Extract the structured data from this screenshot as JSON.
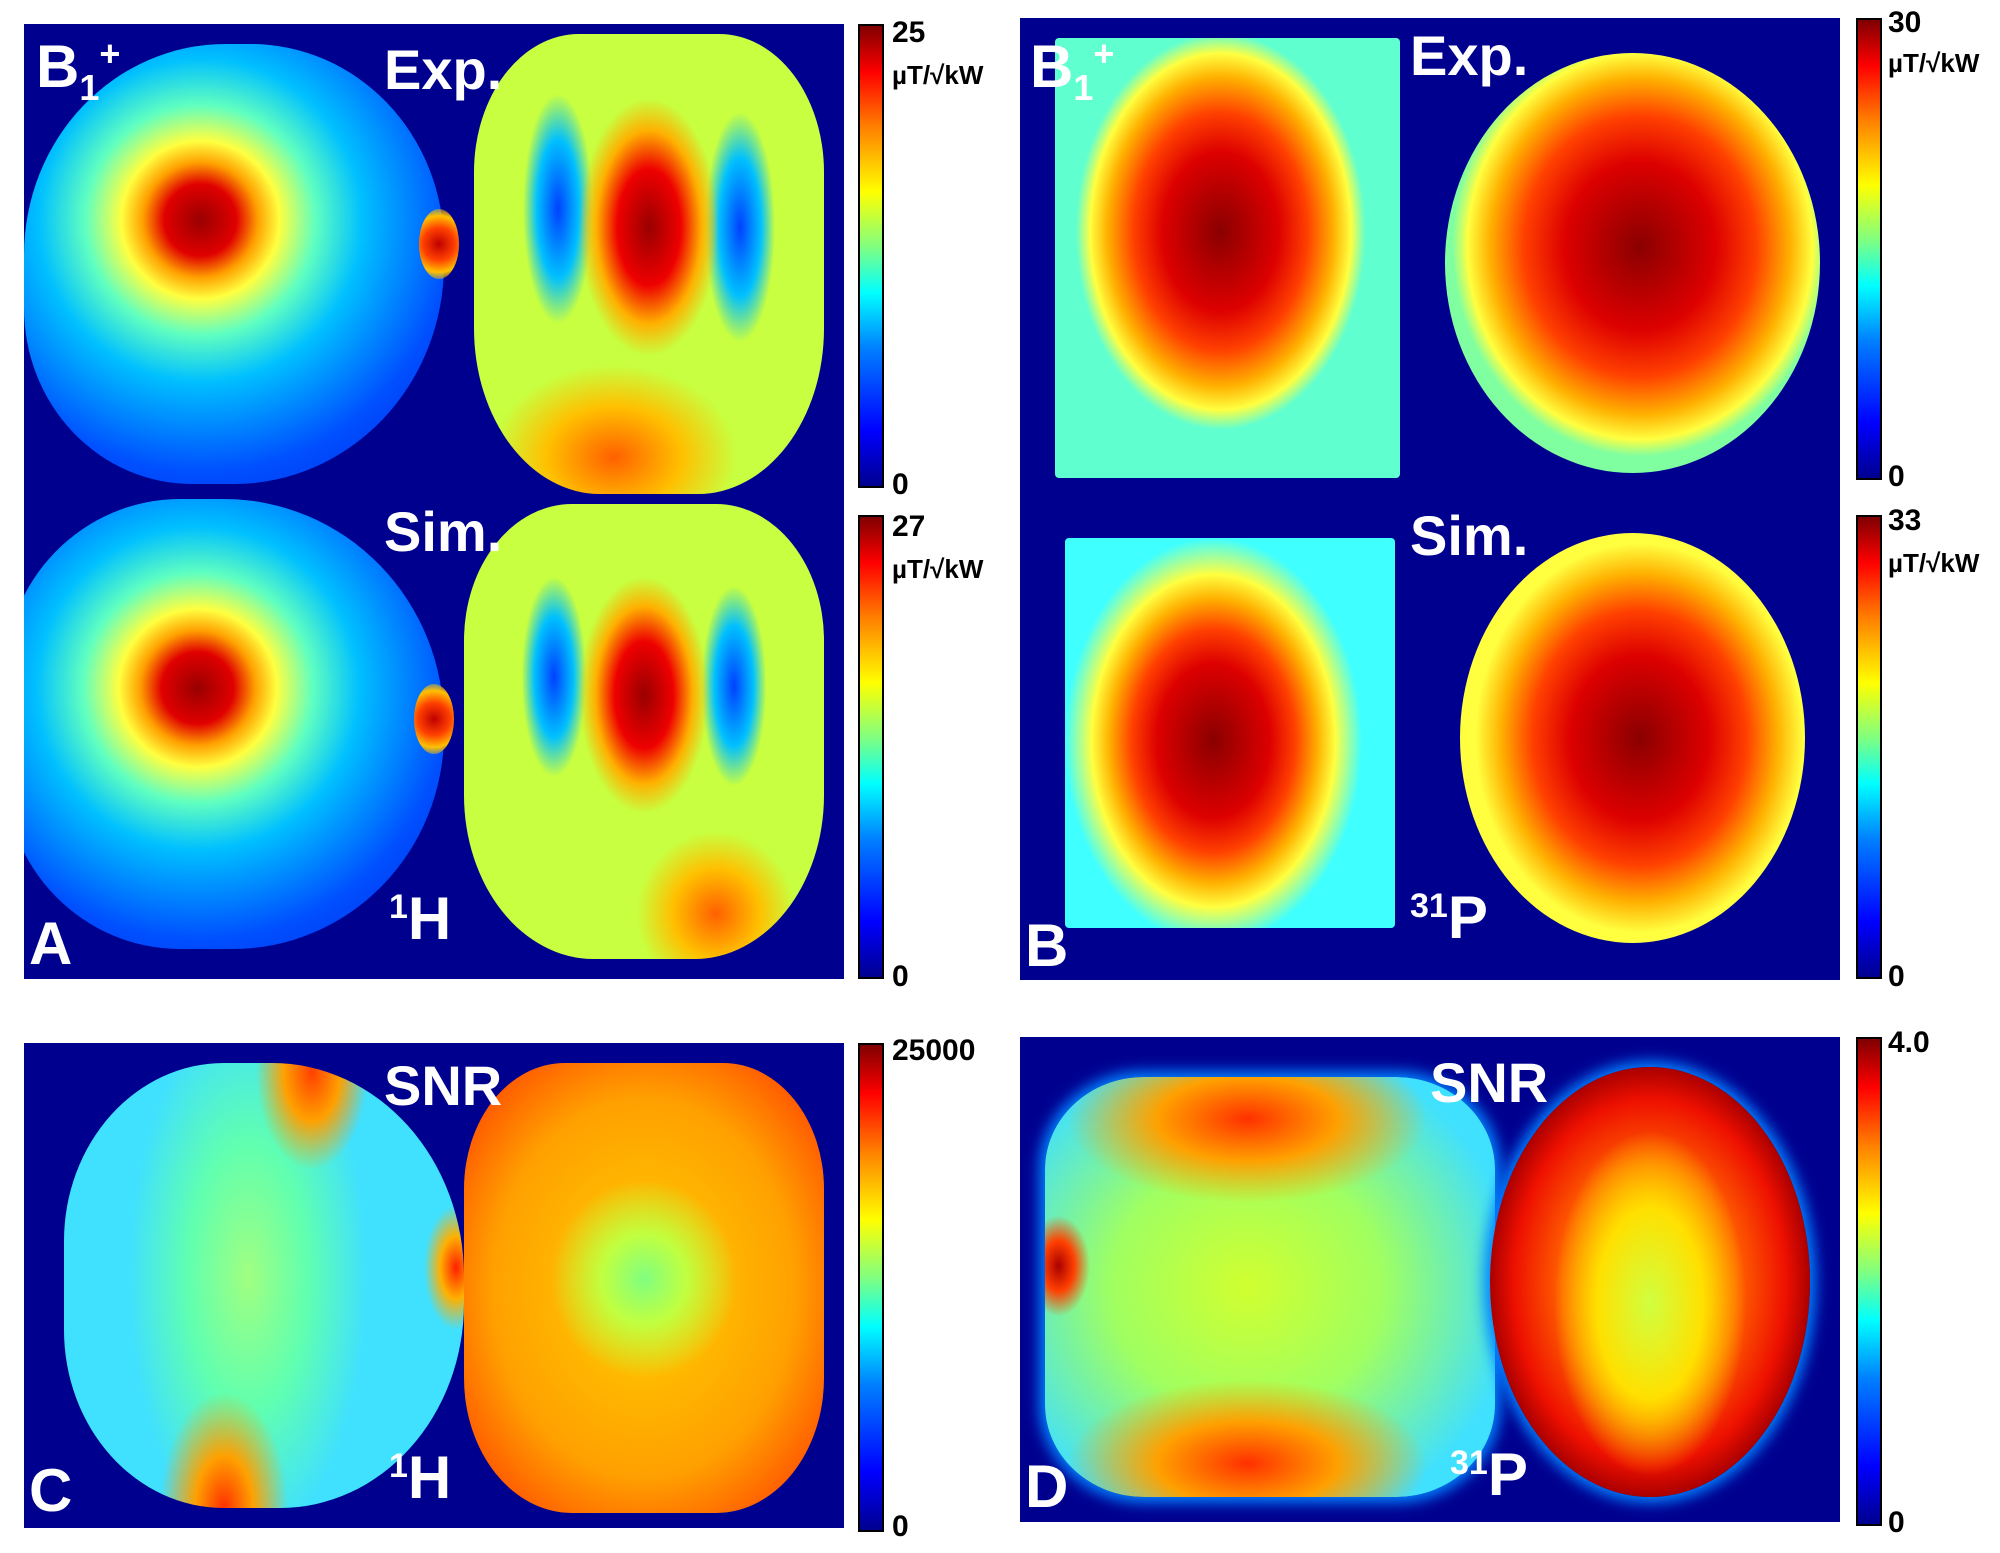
{
  "panels": {
    "A": {
      "letter": "A",
      "b1": "B",
      "b1_sub": "1",
      "b1_sup": "+",
      "exp": "Exp.",
      "sim": "Sim.",
      "nucleus_sup": "1",
      "nucleus": "H",
      "colorbar_top": {
        "max": "25",
        "min": "0",
        "unit": "µT/√kW"
      },
      "colorbar_bottom": {
        "max": "27",
        "min": "0",
        "unit": "µT/√kW"
      }
    },
    "B": {
      "letter": "B",
      "b1": "B",
      "b1_sub": "1",
      "b1_sup": "+",
      "exp": "Exp.",
      "sim": "Sim.",
      "nucleus_sup": "31",
      "nucleus": "P",
      "colorbar_top": {
        "max": "30",
        "min": "0",
        "unit": "µT/√kW"
      },
      "colorbar_bottom": {
        "max": "33",
        "min": "0",
        "unit": "µT/√kW"
      }
    },
    "C": {
      "letter": "C",
      "title": "SNR",
      "nucleus_sup": "1",
      "nucleus": "H",
      "colorbar": {
        "max": "25000",
        "min": "0"
      }
    },
    "D": {
      "letter": "D",
      "title": "SNR",
      "nucleus_sup": "31",
      "nucleus": "P",
      "colorbar": {
        "max": "4.0",
        "min": "0"
      }
    }
  },
  "colormap": [
    "#00008f",
    "#0000ff",
    "#0080ff",
    "#00ffff",
    "#80ff80",
    "#ffff00",
    "#ff8000",
    "#ff0000",
    "#800000"
  ]
}
